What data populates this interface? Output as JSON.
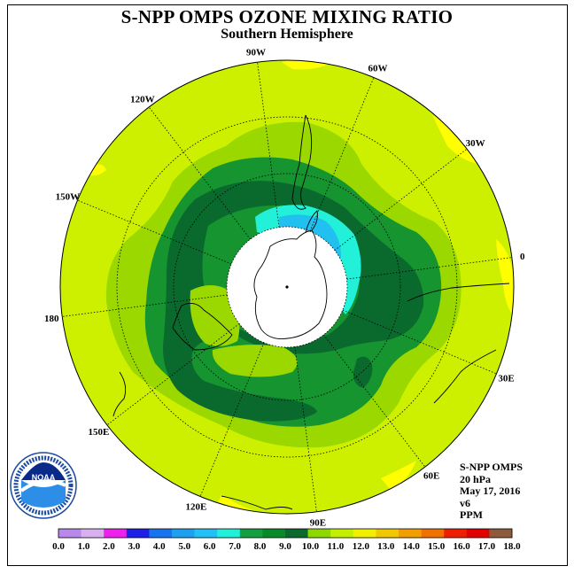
{
  "title": "S-NPP OMPS OZONE MIXING RATIO",
  "subtitle": "Southern Hemisphere",
  "longitude_labels": [
    "90W",
    "60W",
    "30W",
    "0",
    "30E",
    "60E",
    "90E",
    "120E",
    "150E",
    "180",
    "150W",
    "120W"
  ],
  "info": {
    "instrument": "S-NPP OMPS",
    "level": "20 hPa",
    "date": "May 17, 2016",
    "version": "v6",
    "units": "PPM"
  },
  "logo_text": "NOAA",
  "colorbar": {
    "ticks": [
      "0.0",
      "1.0",
      "2.0",
      "3.0",
      "4.0",
      "5.0",
      "6.0",
      "7.0",
      "8.0",
      "9.0",
      "10.0",
      "11.0",
      "12.0",
      "13.0",
      "14.0",
      "15.0",
      "16.0",
      "17.0",
      "18.0"
    ],
    "colors": [
      "#b889e8",
      "#d8b0f0",
      "#ee20ee",
      "#1e1ee6",
      "#1873f0",
      "#1ea0f0",
      "#22c0f5",
      "#20f0d8",
      "#12a040",
      "#088a28",
      "#0a6a2e",
      "#8ed800",
      "#c4f000",
      "#f0f000",
      "#f0c800",
      "#f09e00",
      "#f07000",
      "#f01e00",
      "#e00000",
      "#8e5a3c"
    ]
  },
  "colors": {
    "background_field": "#ccf000",
    "light_green": "#9ad800",
    "green": "#16942f",
    "dark_green": "#0a6a2e",
    "cyan": "#22f0d8",
    "light_blue": "#20c0f0",
    "yellow": "#ffff00",
    "no_data": "#ffffff"
  }
}
